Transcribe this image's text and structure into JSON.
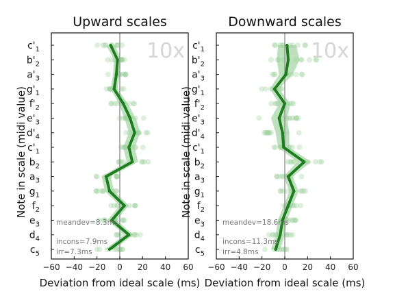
{
  "chart_data": [
    {
      "type": "line",
      "title": "Upward scales",
      "xlabel": "Deviation from ideal scale (ms)",
      "ylabel": "Note in scale (midi value)",
      "xlim": [
        -60,
        60
      ],
      "xticks": [
        "−60",
        "−40",
        "−20",
        "0",
        "20",
        "40",
        "60"
      ],
      "repeat_label": "10x",
      "notes": [
        {
          "letter": "c",
          "prime": "'",
          "sub": "1",
          "mean": -8
        },
        {
          "letter": "b",
          "prime": "'",
          "sub": "2",
          "mean": -2
        },
        {
          "letter": "a",
          "prime": "'",
          "sub": "3",
          "mean": -3
        },
        {
          "letter": "g",
          "prime": "'",
          "sub": "1",
          "mean": -5
        },
        {
          "letter": "f",
          "prime": "'",
          "sub": "2",
          "mean": 3
        },
        {
          "letter": "e",
          "prime": "'",
          "sub": "3",
          "mean": 9
        },
        {
          "letter": "d",
          "prime": "'",
          "sub": "4",
          "mean": 13
        },
        {
          "letter": "c",
          "prime": "'",
          "sub": "1",
          "mean": 8
        },
        {
          "letter": "b",
          "prime": "",
          "sub": "2",
          "mean": 11
        },
        {
          "letter": "a",
          "prime": "",
          "sub": "3",
          "mean": -12
        },
        {
          "letter": "g",
          "prime": "",
          "sub": "1",
          "mean": -9
        },
        {
          "letter": "f",
          "prime": "",
          "sub": "2",
          "mean": 4
        },
        {
          "letter": "e",
          "prime": "",
          "sub": "3",
          "mean": -7
        },
        {
          "letter": "d",
          "prime": "",
          "sub": "4",
          "mean": 8
        },
        {
          "letter": "c",
          "prime": "",
          "sub": "5",
          "mean": -9
        }
      ],
      "band_halfwidth": [
        4,
        3,
        3,
        3,
        4,
        5,
        5,
        5,
        5,
        4,
        4,
        4,
        4,
        4,
        4
      ],
      "annotations": [
        "meandev=8.3ms",
        "incons=7.9ms",
        "irr=7.3ms"
      ],
      "colors": {
        "line": "#1e7d1e",
        "band": "#86c986",
        "dots": "#9ed29e",
        "zero_line": "#999999"
      }
    },
    {
      "type": "line",
      "title": "Downward scales",
      "xlabel": "Deviation from ideal scale (ms)",
      "ylabel": "Note in scale (midi value)",
      "xlim": [
        -60,
        60
      ],
      "xticks": [
        "−60",
        "−40",
        "−20",
        "0",
        "20",
        "40",
        "60"
      ],
      "repeat_label": "10x",
      "notes": [
        {
          "letter": "c",
          "prime": "'",
          "sub": "1",
          "mean": 2
        },
        {
          "letter": "b",
          "prime": "'",
          "sub": "2",
          "mean": 3
        },
        {
          "letter": "a",
          "prime": "'",
          "sub": "3",
          "mean": 1
        },
        {
          "letter": "g",
          "prime": "'",
          "sub": "1",
          "mean": -9
        },
        {
          "letter": "f",
          "prime": "'",
          "sub": "2",
          "mean": 0
        },
        {
          "letter": "e",
          "prime": "'",
          "sub": "3",
          "mean": -5
        },
        {
          "letter": "d",
          "prime": "'",
          "sub": "4",
          "mean": -2
        },
        {
          "letter": "c",
          "prime": "'",
          "sub": "1",
          "mean": -1
        },
        {
          "letter": "b",
          "prime": "",
          "sub": "2",
          "mean": 17
        },
        {
          "letter": "a",
          "prime": "",
          "sub": "3",
          "mean": 3
        },
        {
          "letter": "g",
          "prime": "",
          "sub": "1",
          "mean": 8
        },
        {
          "letter": "f",
          "prime": "",
          "sub": "2",
          "mean": 3
        },
        {
          "letter": "e",
          "prime": "",
          "sub": "3",
          "mean": -2
        },
        {
          "letter": "d",
          "prime": "",
          "sub": "4",
          "mean": -4
        },
        {
          "letter": "c",
          "prime": "",
          "sub": "5",
          "mean": -8
        }
      ],
      "band_halfwidth": [
        8,
        10,
        6,
        4,
        5,
        7,
        6,
        5,
        6,
        4,
        4,
        4,
        4,
        4,
        4
      ],
      "annotations": [
        "meandev=18.6ms",
        "incons=11.3ms",
        "irr=4.8ms"
      ],
      "colors": {
        "line": "#1e7d1e",
        "band": "#86c986",
        "dots": "#9ed29e",
        "zero_line": "#999999"
      }
    }
  ]
}
